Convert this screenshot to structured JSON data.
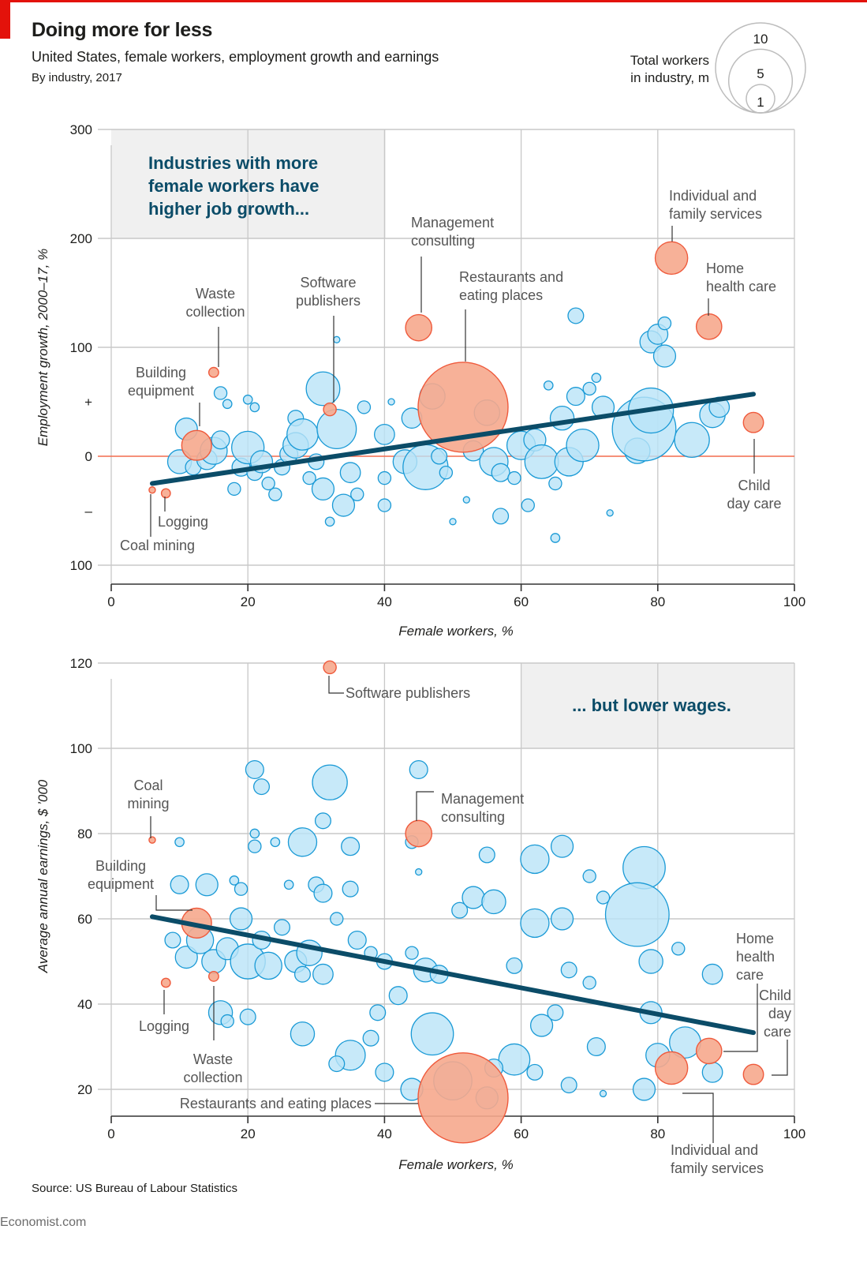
{
  "header": {
    "title": "Doing more for less",
    "subtitle": "United States, female workers, employment growth and earnings",
    "subtitle2": "By industry, 2017"
  },
  "size_legend": {
    "label_line1": "Total workers",
    "label_line2": "in industry, m",
    "values": [
      10,
      5,
      1
    ]
  },
  "colors": {
    "bubble_fill": "#b9e4f8",
    "bubble_stroke": "#1a9ad6",
    "highlight_fill": "#f6a88d",
    "highlight_stroke": "#ef5a3c",
    "trend": "#0b4c68",
    "zero_line": "#f26b4f",
    "grid": "#c8c8c8",
    "annotation_box": "#f0f0f0",
    "annotation_text": "#0b4c68"
  },
  "footer": {
    "source": "Source: US Bureau of Labour Statistics",
    "brand": "Economist.com"
  },
  "chart_data": [
    {
      "type": "scatter",
      "title": "Employment growth vs share of female workers",
      "annotation": [
        "Industries with more",
        "female workers have",
        "higher job growth..."
      ],
      "xlabel": "Female workers, %",
      "ylabel": "Employment growth, 2000–17, %",
      "xlim": [
        0,
        100
      ],
      "ylim": [
        -100,
        300
      ],
      "xticks": [
        "0",
        "20",
        "40",
        "60",
        "80",
        "100"
      ],
      "yticks": [
        {
          "value": 300,
          "label": "300"
        },
        {
          "value": 200,
          "label": "200"
        },
        {
          "value": 100,
          "label": "100"
        },
        {
          "value": 50,
          "label": "+"
        },
        {
          "value": 0,
          "label": "0"
        },
        {
          "value": -50,
          "label": "–"
        },
        {
          "value": -100,
          "label": "100"
        }
      ],
      "grid": true,
      "trend": {
        "x": [
          6,
          94
        ],
        "y": [
          -25,
          57
        ]
      },
      "highlighted": [
        {
          "name": "Coal mining",
          "label_lines": [
            "Coal mining"
          ],
          "x": 6,
          "y": -31,
          "size_m": 0.05
        },
        {
          "name": "Logging",
          "label_lines": [
            "Logging"
          ],
          "x": 8,
          "y": -34,
          "size_m": 0.1
        },
        {
          "name": "Building equipment",
          "label_lines": [
            "Building",
            "equipment"
          ],
          "x": 12.5,
          "y": 10,
          "size_m": 1.1
        },
        {
          "name": "Waste collection",
          "label_lines": [
            "Waste",
            "collection"
          ],
          "x": 15,
          "y": 77,
          "size_m": 0.12
        },
        {
          "name": "Software publishers",
          "label_lines": [
            "Software",
            "publishers"
          ],
          "x": 32,
          "y": 43,
          "size_m": 0.2
        },
        {
          "name": "Management consulting",
          "label_lines": [
            "Management",
            "consulting"
          ],
          "x": 45,
          "y": 118,
          "size_m": 0.85
        },
        {
          "name": "Restaurants and eating places",
          "label_lines": [
            "Restaurants and",
            "eating places"
          ],
          "x": 51.5,
          "y": 45,
          "size_m": 10.0
        },
        {
          "name": "Individual and family services",
          "label_lines": [
            "Individual and",
            "family services"
          ],
          "x": 82,
          "y": 182,
          "size_m": 1.3
        },
        {
          "name": "Home health care",
          "label_lines": [
            "Home",
            "health care"
          ],
          "x": 87.5,
          "y": 119,
          "size_m": 0.8
        },
        {
          "name": "Child day care",
          "label_lines": [
            "Child",
            "day care"
          ],
          "x": 94,
          "y": 31,
          "size_m": 0.5
        }
      ],
      "others": [
        [
          10,
          -5,
          0.7
        ],
        [
          11,
          25,
          0.6
        ],
        [
          12,
          -10,
          0.3
        ],
        [
          14,
          -3,
          0.5
        ],
        [
          15,
          5,
          0.9
        ],
        [
          16,
          15,
          0.4
        ],
        [
          16,
          58,
          0.2
        ],
        [
          17,
          48,
          0.1
        ],
        [
          18,
          -30,
          0.2
        ],
        [
          19,
          -10,
          0.4
        ],
        [
          20,
          52,
          0.1
        ],
        [
          20,
          8,
          1.3
        ],
        [
          21,
          45,
          0.1
        ],
        [
          21,
          -15,
          0.3
        ],
        [
          22,
          -5,
          0.6
        ],
        [
          23,
          -25,
          0.2
        ],
        [
          24,
          -35,
          0.2
        ],
        [
          25,
          -10,
          0.3
        ],
        [
          26,
          2,
          0.4
        ],
        [
          27,
          35,
          0.3
        ],
        [
          27,
          10,
          0.8
        ],
        [
          28,
          20,
          1.2
        ],
        [
          29,
          -20,
          0.2
        ],
        [
          30,
          -5,
          0.3
        ],
        [
          31,
          -30,
          0.6
        ],
        [
          31,
          62,
          1.4
        ],
        [
          32,
          -60,
          0.1
        ],
        [
          33,
          107,
          0.05
        ],
        [
          33,
          25,
          1.9
        ],
        [
          34,
          -45,
          0.6
        ],
        [
          35,
          -15,
          0.5
        ],
        [
          36,
          -35,
          0.2
        ],
        [
          37,
          45,
          0.2
        ],
        [
          40,
          20,
          0.5
        ],
        [
          40,
          -20,
          0.2
        ],
        [
          40,
          -45,
          0.2
        ],
        [
          41,
          50,
          0.05
        ],
        [
          43,
          -5,
          0.7
        ],
        [
          44,
          35,
          0.5
        ],
        [
          46,
          -10,
          2.5
        ],
        [
          47,
          55,
          0.8
        ],
        [
          48,
          0,
          0.3
        ],
        [
          49,
          -15,
          0.2
        ],
        [
          50,
          -60,
          0.05
        ],
        [
          52,
          -40,
          0.05
        ],
        [
          53,
          5,
          0.5
        ],
        [
          55,
          40,
          0.8
        ],
        [
          56,
          -5,
          1.0
        ],
        [
          57,
          -15,
          0.4
        ],
        [
          57,
          -55,
          0.3
        ],
        [
          59,
          -20,
          0.2
        ],
        [
          60,
          10,
          1.0
        ],
        [
          61,
          -45,
          0.2
        ],
        [
          62,
          15,
          0.6
        ],
        [
          63,
          -5,
          1.4
        ],
        [
          64,
          65,
          0.1
        ],
        [
          65,
          -25,
          0.2
        ],
        [
          65,
          -75,
          0.1
        ],
        [
          66,
          35,
          0.7
        ],
        [
          67,
          -5,
          1.0
        ],
        [
          68,
          55,
          0.4
        ],
        [
          68,
          129,
          0.3
        ],
        [
          69,
          10,
          1.3
        ],
        [
          70,
          62,
          0.2
        ],
        [
          71,
          72,
          0.1
        ],
        [
          72,
          45,
          0.6
        ],
        [
          73,
          -52,
          0.05
        ],
        [
          77,
          5,
          0.8
        ],
        [
          78,
          25,
          5.0
        ],
        [
          79,
          42,
          2.5
        ],
        [
          79,
          105,
          0.6
        ],
        [
          80,
          112,
          0.5
        ],
        [
          81,
          92,
          0.6
        ],
        [
          81,
          122,
          0.2
        ],
        [
          85,
          15,
          1.5
        ],
        [
          88,
          38,
          0.8
        ],
        [
          89,
          45,
          0.5
        ]
      ]
    },
    {
      "type": "scatter",
      "title": "Average annual earnings vs share of female workers",
      "annotation": [
        "... but lower wages."
      ],
      "xlabel": "Female workers, %",
      "ylabel": "Average annual earnings, $ ’000",
      "xlim": [
        0,
        100
      ],
      "ylim": [
        13,
        120
      ],
      "xticks": [
        "0",
        "20",
        "40",
        "60",
        "80",
        "100"
      ],
      "yticks": [
        {
          "value": 120,
          "label": "120"
        },
        {
          "value": 100,
          "label": "100"
        },
        {
          "value": 80,
          "label": "80"
        },
        {
          "value": 60,
          "label": "60"
        },
        {
          "value": 40,
          "label": "40"
        },
        {
          "value": 20,
          "label": "20"
        }
      ],
      "grid": true,
      "trend": {
        "x": [
          6,
          94
        ],
        "y": [
          60.5,
          33.3
        ]
      },
      "highlighted": [
        {
          "name": "Software publishers",
          "label_lines": [
            "Software publishers"
          ],
          "x": 32,
          "y": 119,
          "size_m": 0.2
        },
        {
          "name": "Coal mining",
          "label_lines": [
            "Coal",
            "mining"
          ],
          "x": 6,
          "y": 78.5,
          "size_m": 0.05
        },
        {
          "name": "Management consulting",
          "label_lines": [
            "Management",
            "consulting"
          ],
          "x": 45,
          "y": 80,
          "size_m": 0.85
        },
        {
          "name": "Building equipment",
          "label_lines": [
            "Building",
            "equipment"
          ],
          "x": 12.5,
          "y": 59,
          "size_m": 1.1
        },
        {
          "name": "Logging",
          "label_lines": [
            "Logging"
          ],
          "x": 8,
          "y": 45,
          "size_m": 0.1
        },
        {
          "name": "Waste collection",
          "label_lines": [
            "Waste",
            "collection"
          ],
          "x": 15,
          "y": 46.5,
          "size_m": 0.12
        },
        {
          "name": "Restaurants and eating places",
          "label_lines": [
            "Restaurants and eating places"
          ],
          "x": 51.5,
          "y": 18,
          "size_m": 10.0
        },
        {
          "name": "Home health care",
          "label_lines": [
            "Home",
            "health",
            "care"
          ],
          "x": 87.5,
          "y": 29,
          "size_m": 0.8
        },
        {
          "name": "Child day care",
          "label_lines": [
            "Child",
            "day",
            "care"
          ],
          "x": 94,
          "y": 23.5,
          "size_m": 0.5
        },
        {
          "name": "Individual and family services",
          "label_lines": [
            "Individual and",
            "family services"
          ],
          "x": 82,
          "y": 25,
          "size_m": 1.3
        }
      ],
      "others": [
        [
          21,
          95,
          0.4
        ],
        [
          22,
          91,
          0.3
        ],
        [
          32,
          92,
          1.5
        ],
        [
          31,
          83,
          0.3
        ],
        [
          28,
          78,
          1.0
        ],
        [
          24,
          78,
          0.1
        ],
        [
          21,
          80,
          0.1
        ],
        [
          21,
          77,
          0.2
        ],
        [
          35,
          77,
          0.4
        ],
        [
          45,
          95,
          0.4
        ],
        [
          44,
          78,
          0.2
        ],
        [
          45,
          71,
          0.05
        ],
        [
          55,
          75,
          0.3
        ],
        [
          62,
          74,
          1.0
        ],
        [
          66,
          77,
          0.6
        ],
        [
          78,
          72,
          2.2
        ],
        [
          70,
          70,
          0.2
        ],
        [
          10,
          78,
          0.1
        ],
        [
          10,
          68,
          0.4
        ],
        [
          14,
          68,
          0.6
        ],
        [
          18,
          69,
          0.1
        ],
        [
          19,
          67,
          0.2
        ],
        [
          26,
          68,
          0.1
        ],
        [
          30,
          68,
          0.3
        ],
        [
          31,
          66,
          0.4
        ],
        [
          35,
          67,
          0.3
        ],
        [
          9,
          55,
          0.3
        ],
        [
          11,
          51,
          0.6
        ],
        [
          13,
          55,
          0.9
        ],
        [
          15,
          50,
          0.7
        ],
        [
          17,
          53,
          0.6
        ],
        [
          19,
          60,
          0.6
        ],
        [
          20,
          50,
          1.5
        ],
        [
          22,
          55,
          0.4
        ],
        [
          23,
          49,
          0.9
        ],
        [
          25,
          58,
          0.3
        ],
        [
          27,
          50,
          0.6
        ],
        [
          28,
          47,
          0.3
        ],
        [
          29,
          52,
          0.8
        ],
        [
          31,
          47,
          0.5
        ],
        [
          33,
          60,
          0.2
        ],
        [
          36,
          55,
          0.4
        ],
        [
          38,
          52,
          0.2
        ],
        [
          40,
          50,
          0.3
        ],
        [
          42,
          42,
          0.4
        ],
        [
          44,
          52,
          0.2
        ],
        [
          46,
          48,
          0.7
        ],
        [
          48,
          47,
          0.4
        ],
        [
          51,
          62,
          0.3
        ],
        [
          53,
          65,
          0.6
        ],
        [
          56,
          64,
          0.7
        ],
        [
          59,
          49,
          0.3
        ],
        [
          62,
          59,
          1.0
        ],
        [
          66,
          60,
          0.6
        ],
        [
          67,
          48,
          0.3
        ],
        [
          70,
          45,
          0.2
        ],
        [
          72,
          65,
          0.2
        ],
        [
          77,
          61,
          5.0
        ],
        [
          79,
          50,
          0.7
        ],
        [
          83,
          53,
          0.2
        ],
        [
          88,
          47,
          0.5
        ],
        [
          79,
          38,
          0.6
        ],
        [
          80,
          28,
          0.7
        ],
        [
          84,
          31,
          1.2
        ],
        [
          88,
          24,
          0.5
        ],
        [
          78,
          20,
          0.6
        ],
        [
          72,
          19,
          0.05
        ],
        [
          67,
          21,
          0.3
        ],
        [
          62,
          24,
          0.3
        ],
        [
          59,
          27,
          1.2
        ],
        [
          56,
          25,
          0.4
        ],
        [
          55,
          18,
          0.6
        ],
        [
          50,
          22,
          1.8
        ],
        [
          47,
          33,
          2.2
        ],
        [
          44,
          20,
          0.6
        ],
        [
          40,
          24,
          0.4
        ],
        [
          38,
          32,
          0.3
        ],
        [
          35,
          28,
          1.1
        ],
        [
          33,
          26,
          0.3
        ],
        [
          28,
          33,
          0.7
        ],
        [
          20,
          37,
          0.3
        ],
        [
          16,
          38,
          0.7
        ],
        [
          17,
          36,
          0.2
        ],
        [
          39,
          38,
          0.3
        ],
        [
          63,
          35,
          0.6
        ],
        [
          65,
          38,
          0.3
        ],
        [
          71,
          30,
          0.4
        ]
      ]
    }
  ]
}
